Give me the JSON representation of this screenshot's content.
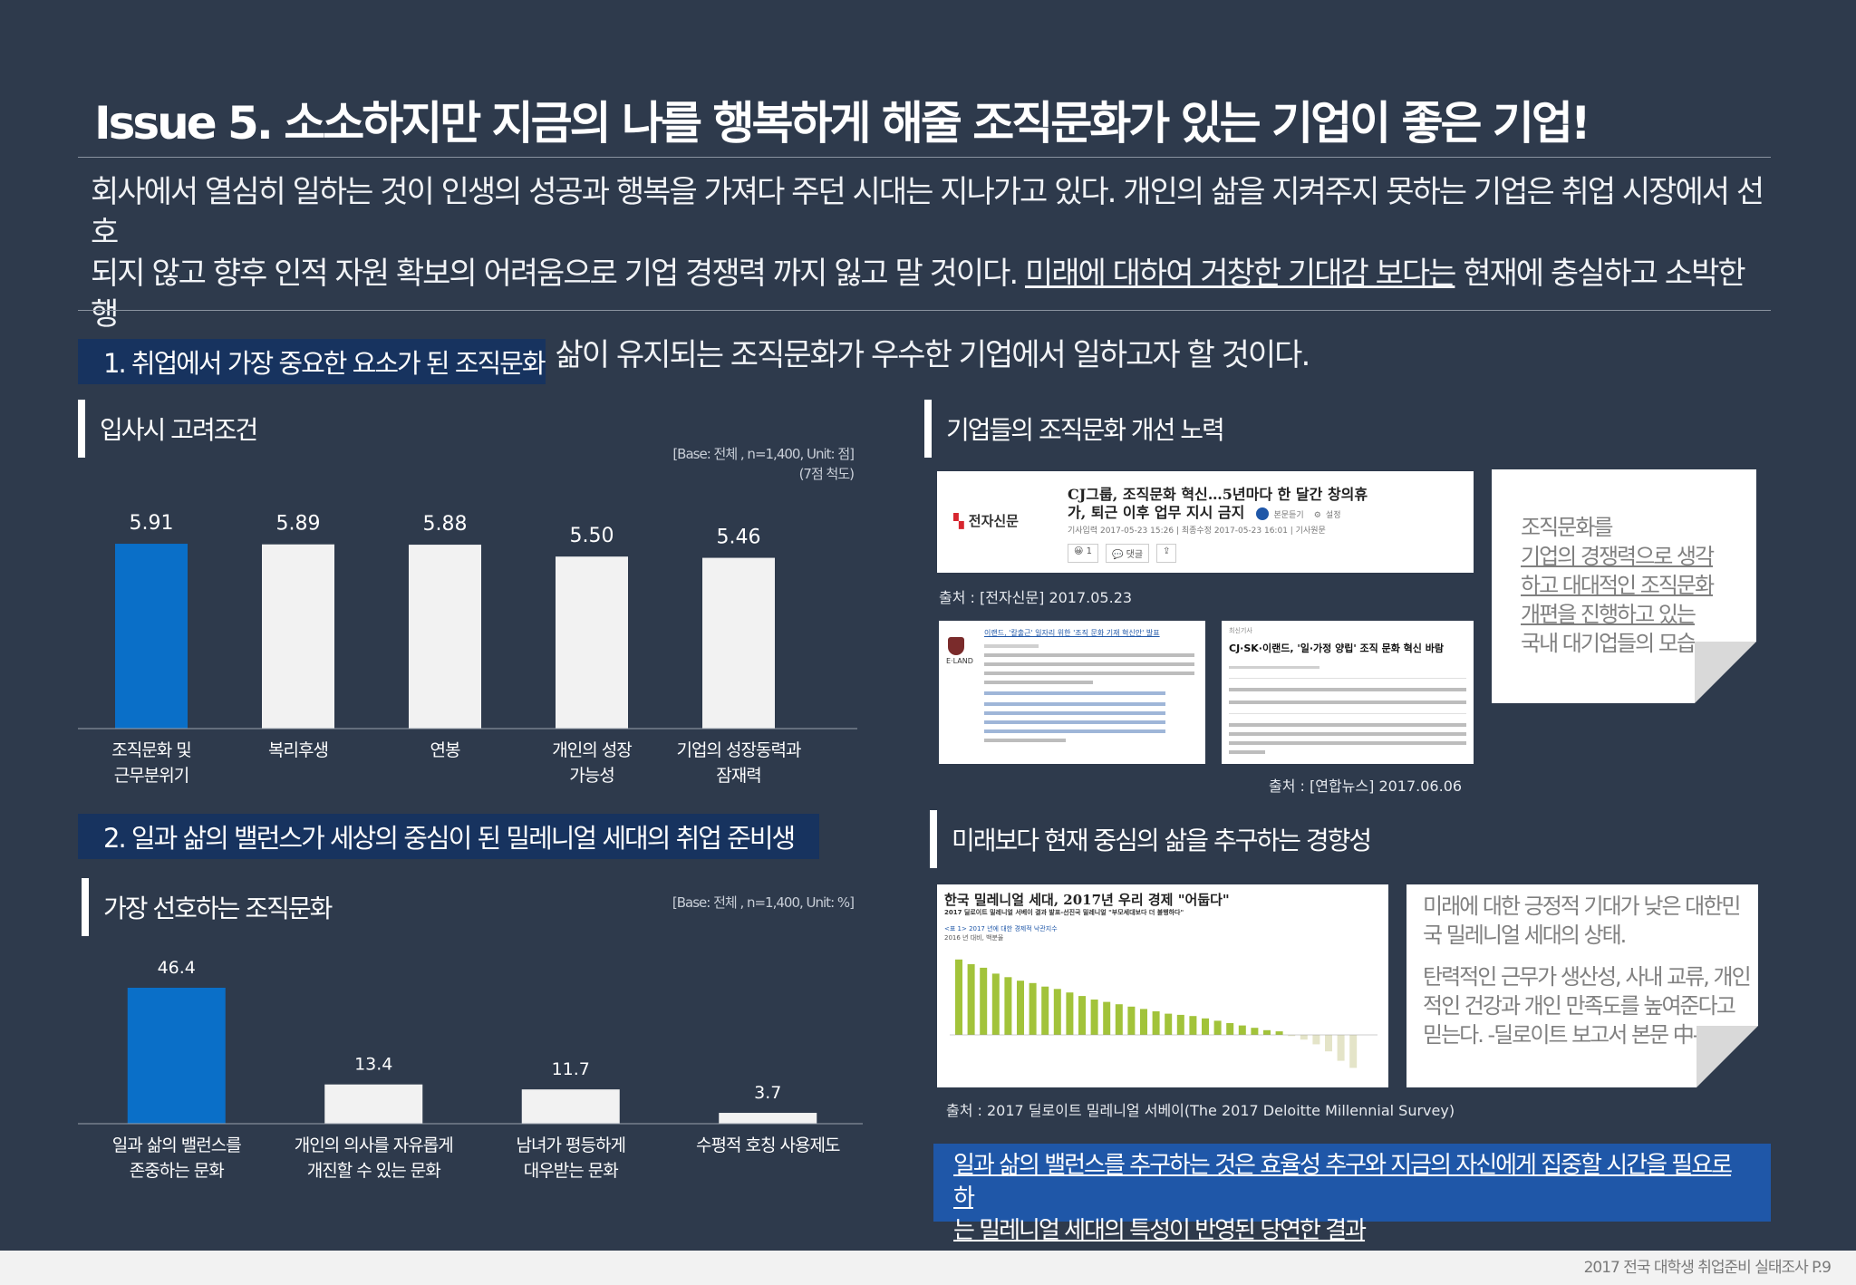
{
  "title": "Issue 5. 소소하지만 지금의 나를 행복하게 해줄 조직문화가 있는 기업이 좋은 기업!",
  "intro": {
    "line1": "회사에서 열심히 일하는 것이 인생의 성공과 행복을 가져다 주던 시대는 지나가고 있다. 개인의 삶을 지켜주지 못하는 기업은 취업 시장에서 선호",
    "line2a": "되지 않고 향후 인적 자원 확보의 어려움으로 기업 경쟁력 까지 잃고 말 것이다. ",
    "line2u": "미래에 대하여 거창한 기대감 보다는",
    "line2b": " 현재에 충실하고 소박한 행",
    "line3": "복을 희망하는 취업 준비생들은 개인의 삶이 유지되는 조직문화가 우수한 기업에서 일하고자 할 것이다."
  },
  "section1": {
    "label": "1. 취업에서 가장 중요한 요소가 된 조직문화"
  },
  "section2": {
    "label": "2. 일과 삶의 밸런스가 세상의 중심이 된 밀레니얼 세대의 취업 준비생"
  },
  "chart1": {
    "subtitle": "입사시 고려조건",
    "base_line1": "[Base: 전체 , n=1,400, Unit: 점]",
    "base_line2": "(7점 척도)"
  },
  "chart2": {
    "subtitle": "가장 선호하는 조직문화",
    "base_line1": "[Base: 전체 , n=1,400, Unit: %]"
  },
  "chart_data": [
    {
      "type": "bar",
      "categories": [
        "조직문화 및\n근무분위기",
        "복리후생",
        "연봉",
        "개인의 성장\n가능성",
        "기업의 성장동력과\n잠재력"
      ],
      "values": [
        5.91,
        5.89,
        5.88,
        5.5,
        5.46
      ],
      "value_labels": [
        "5.91",
        "5.89",
        "5.88",
        "5.50",
        "5.46"
      ],
      "title": "입사시 고려조건",
      "colors": [
        "#0a6fc8",
        "#f2f2f2",
        "#f2f2f2",
        "#f2f2f2",
        "#f2f2f2"
      ]
    },
    {
      "type": "bar",
      "categories": [
        "일과 삶의 밸런스를\n존중하는 문화",
        "개인의 의사를 자유롭게\n개진할 수 있는 문화",
        "남녀가 평등하게\n대우받는 문화",
        "수평적 호칭 사용제도"
      ],
      "values": [
        46.4,
        13.4,
        11.7,
        3.7
      ],
      "value_labels": [
        "46.4",
        "13.4",
        "11.7",
        "3.7"
      ],
      "title": "가장 선호하는 조직문화",
      "colors": [
        "#0a6fc8",
        "#f2f2f2",
        "#f2f2f2",
        "#f2f2f2"
      ]
    }
  ],
  "right1": {
    "subtitle": "기업들의 조직문화 개선 노력",
    "news1": {
      "logo": "전자신문",
      "headline1": "CJ그룹, 조직문화 혁신…5년마다 한 달간 창의휴",
      "headline2": "가, 퇴근 이후 업무 지시 금지",
      "meta": "기사입력 2017-05-23 15:26   |   최종수정 2017-05-23 16:01   |   기사원문",
      "listen": "본문듣기",
      "setting": "설정",
      "likes": "1",
      "comment": "댓글"
    },
    "source1": "출처 : [전자신문] 2017.05.23",
    "news2": {
      "logo": "E·LAND",
      "headline": "이랜드, '칼출근' 일자리 위한 '조직 문화 기재 혁신안' 발표"
    },
    "news3": {
      "tag": "최신기사",
      "headline": "CJ·SK·이랜드, '일·가정 양립' 조직 문화 혁신 바람"
    },
    "source2": "출처 : [연합뉴스] 2017.06.06",
    "note1": [
      "조직문화를",
      "기업의 경쟁력으로 생각",
      "하고 대대적인 조직문화",
      "개편을 진행하고 있는",
      "국내 대기업들의 모습"
    ]
  },
  "right2": {
    "subtitle": "미래보다 현재 중심의 삶을 추구하는 경향성",
    "article": {
      "headline": "한국 밀레니얼 세대, 2017년 우리 경제 \"어둡다\"",
      "sub": "2017 딜로이트 밀레니얼 서베이 결과 발표-선진국 밀레니얼 \"부모세대보다 더 불행하다\"",
      "fig_title": "<표 1> 2017 년에 대한 경제적 낙관지수",
      "fig_sub": "2016 년 대비, 백분율",
      "bars": [
        64,
        60,
        57,
        52,
        49,
        46,
        44,
        41,
        39,
        36,
        33,
        30,
        28,
        26,
        24,
        22,
        20,
        18,
        17,
        16,
        14,
        12,
        10,
        8,
        6,
        4,
        3,
        -1,
        -4,
        -8,
        -14,
        -22,
        -28
      ]
    },
    "source": "출처 : 2017 딜로이트 밀레니얼 서베이(The 2017 Deloitte Millennial Survey)",
    "note_p1": [
      "미래에 대한 긍정적 기대가 낮은 대한민",
      "국 밀레니얼 세대의 상태."
    ],
    "note_p2": [
      "탄력적인 근무가 생산성, 사내 교류, 개인",
      "적인 건강과 개인 만족도를 높여준다고",
      "믿는다. -딜로이트 보고서 본문 中-"
    ]
  },
  "conclusion": {
    "line1": "일과 삶의 밸런스를 추구하는 것은 효율성 추구와 지금의 자신에게 집중할 시간을 필요로 하",
    "line2": "는 밀레니얼 세대의 특성이 반영된 당연한 결과"
  },
  "footer": "2017 전국 대학생 취업준비 실태조사   P.9"
}
